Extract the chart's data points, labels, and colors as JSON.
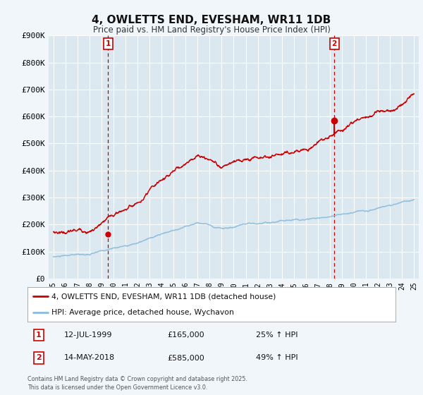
{
  "title": "4, OWLETTS END, EVESHAM, WR11 1DB",
  "subtitle": "Price paid vs. HM Land Registry's House Price Index (HPI)",
  "ylim": [
    0,
    900000
  ],
  "yticks": [
    0,
    100000,
    200000,
    300000,
    400000,
    500000,
    600000,
    700000,
    800000,
    900000
  ],
  "ytick_labels": [
    "£0",
    "£100K",
    "£200K",
    "£300K",
    "£400K",
    "£500K",
    "£600K",
    "£700K",
    "£800K",
    "£900K"
  ],
  "line_color_red": "#cc0000",
  "line_color_blue": "#88bbdd",
  "sale1_year": 1999.54,
  "sale1_price": 165000,
  "sale2_year": 2018.37,
  "sale2_price": 585000,
  "legend_line1": "4, OWLETTS END, EVESHAM, WR11 1DB (detached house)",
  "legend_line2": "HPI: Average price, detached house, Wychavon",
  "sale1_date": "12-JUL-1999",
  "sale1_amount": "£165,000",
  "sale1_pct": "25% ↑ HPI",
  "sale2_date": "14-MAY-2018",
  "sale2_amount": "£585,000",
  "sale2_pct": "49% ↑ HPI",
  "footer": "Contains HM Land Registry data © Crown copyright and database right 2025.\nThis data is licensed under the Open Government Licence v3.0.",
  "bg_color": "#dce8f0",
  "plot_bg": "#dce8f0",
  "vline_color": "#cc0000"
}
